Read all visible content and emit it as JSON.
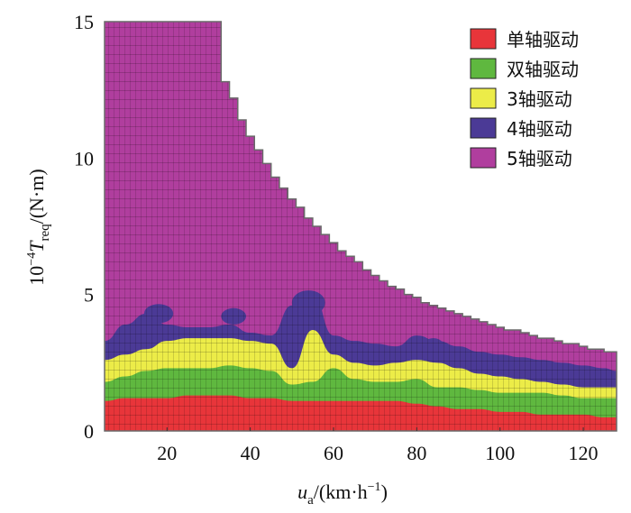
{
  "chart_data": {
    "type": "heatmap",
    "xlabel": "u_a/(km·h⁻¹)",
    "xlabel_parts": {
      "main": "u",
      "sub": "a",
      "rest": "/(km·h",
      "sup": "−1",
      "end": ")"
    },
    "ylabel": "10⁻⁴T_req/(N·m)",
    "ylabel_parts": {
      "pre": "10",
      "sup": "−4",
      "main": "T",
      "sub": "req",
      "rest": "/(N·m)"
    },
    "xlim": [
      5,
      128
    ],
    "ylim": [
      0,
      15
    ],
    "x_ticks": [
      "20",
      "40",
      "60",
      "80",
      "100",
      "120"
    ],
    "x_tick_values": [
      20,
      40,
      60,
      80,
      100,
      120
    ],
    "y_ticks": [
      "0",
      "5",
      "10",
      "15"
    ],
    "y_tick_values": [
      0,
      5,
      10,
      15
    ],
    "grid": false,
    "legend_position": "top-right",
    "series": [
      {
        "name": "单轴驱动",
        "color": "#e8353a"
      },
      {
        "name": "双轴驱动",
        "color": "#5fb83f"
      },
      {
        "name": "3轴驱动",
        "color": "#ecec48"
      },
      {
        "name": "4轴驱动",
        "color": "#4b3a96"
      },
      {
        "name": "5轴驱动",
        "color": "#b03e9e"
      }
    ],
    "max_torque_envelope": {
      "x": [
        5,
        31,
        33,
        35,
        37,
        39,
        41,
        43,
        45,
        47,
        49,
        51,
        53,
        55,
        57,
        59,
        61,
        63,
        65,
        67,
        69,
        71,
        73,
        75,
        77,
        79,
        81,
        83,
        85,
        87,
        89,
        91,
        93,
        95,
        97,
        99,
        101,
        103,
        105,
        107,
        109,
        111,
        113,
        115,
        117,
        119,
        121,
        123,
        125,
        128
      ],
      "y": [
        15,
        15,
        12.8,
        12.2,
        11.4,
        10.8,
        10.3,
        9.8,
        9.3,
        8.9,
        8.5,
        8.2,
        7.8,
        7.5,
        7.2,
        6.9,
        6.6,
        6.4,
        6.2,
        5.9,
        5.7,
        5.5,
        5.3,
        5.2,
        5.0,
        4.9,
        4.7,
        4.6,
        4.5,
        4.4,
        4.3,
        4.2,
        4.1,
        4.0,
        3.9,
        3.8,
        3.7,
        3.7,
        3.6,
        3.5,
        3.4,
        3.4,
        3.3,
        3.2,
        3.2,
        3.1,
        3.0,
        3.0,
        2.9,
        2.9
      ]
    },
    "region_boundaries": {
      "x": [
        5,
        10,
        15,
        20,
        25,
        30,
        35,
        40,
        45,
        50,
        55,
        60,
        65,
        70,
        75,
        80,
        85,
        90,
        95,
        100,
        105,
        110,
        115,
        120,
        125,
        128
      ],
      "single_axle_upper": [
        1.1,
        1.2,
        1.2,
        1.2,
        1.3,
        1.3,
        1.3,
        1.2,
        1.2,
        1.1,
        1.1,
        1.1,
        1.1,
        1.1,
        1.1,
        1.0,
        0.9,
        0.8,
        0.8,
        0.7,
        0.7,
        0.6,
        0.6,
        0.6,
        0.5,
        0.5
      ],
      "dual_axle_upper": [
        1.8,
        2.0,
        2.2,
        2.3,
        2.3,
        2.3,
        2.4,
        2.3,
        2.2,
        1.7,
        1.8,
        2.3,
        1.9,
        1.8,
        1.8,
        1.9,
        1.6,
        1.6,
        1.5,
        1.4,
        1.4,
        1.4,
        1.3,
        1.2,
        1.2,
        1.2
      ],
      "three_axle_upper": [
        2.6,
        2.8,
        3.0,
        3.3,
        3.4,
        3.4,
        3.4,
        3.3,
        3.2,
        2.3,
        3.7,
        2.8,
        2.5,
        2.4,
        2.5,
        2.6,
        2.5,
        2.3,
        2.1,
        2.0,
        1.9,
        1.8,
        1.7,
        1.6,
        1.6,
        1.6
      ],
      "four_axle_upper": [
        3.3,
        3.9,
        4.3,
        3.9,
        3.8,
        3.8,
        3.9,
        3.6,
        3.5,
        4.6,
        5.0,
        3.5,
        3.3,
        3.2,
        3.1,
        3.5,
        3.3,
        3.1,
        2.9,
        2.8,
        2.7,
        2.6,
        2.5,
        2.4,
        2.3,
        2.2
      ]
    }
  }
}
